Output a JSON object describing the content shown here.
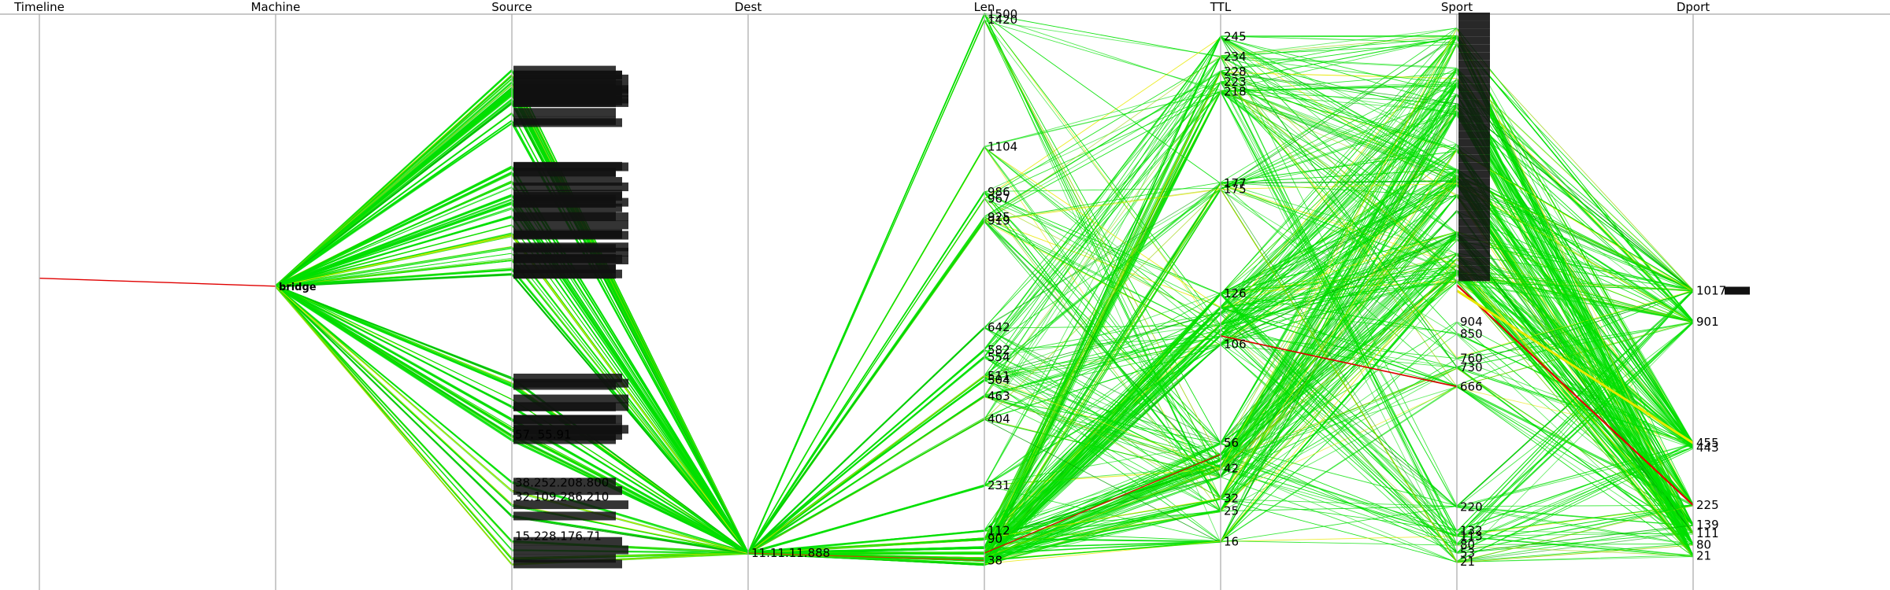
{
  "chart_data": {
    "type": "parallel-coordinates",
    "axes": [
      {
        "key": "timeline",
        "label": "Timeline"
      },
      {
        "key": "machine",
        "label": "Machine"
      },
      {
        "key": "source",
        "label": "Source"
      },
      {
        "key": "dest",
        "label": "Dest"
      },
      {
        "key": "len",
        "label": "Len"
      },
      {
        "key": "ttl",
        "label": "TTL"
      },
      {
        "key": "sport",
        "label": "Sport"
      },
      {
        "key": "dport",
        "label": "Dport"
      }
    ],
    "machine_labels": [
      "bridge"
    ],
    "dest_labels": [
      "11.11.11.888"
    ],
    "source_labels": [
      "57.    55.91",
      "38.252.208.800",
      "32.109.286.210",
      "15.228.176.71"
    ],
    "len_ticks": [
      {
        "label": "1500",
        "v": 0.0
      },
      {
        "label": "1420",
        "v": 0.01
      },
      {
        "label": "1104",
        "v": 0.235
      },
      {
        "label": "986",
        "v": 0.315
      },
      {
        "label": "967",
        "v": 0.327
      },
      {
        "label": "925",
        "v": 0.36
      },
      {
        "label": "919",
        "v": 0.366
      },
      {
        "label": "642",
        "v": 0.555
      },
      {
        "label": "582",
        "v": 0.595
      },
      {
        "label": "554",
        "v": 0.608
      },
      {
        "label": "511",
        "v": 0.641
      },
      {
        "label": "504",
        "v": 0.648
      },
      {
        "label": "463",
        "v": 0.677
      },
      {
        "label": "404",
        "v": 0.717
      },
      {
        "label": "231",
        "v": 0.835
      },
      {
        "label": "112",
        "v": 0.915
      },
      {
        "label": "90",
        "v": 0.93
      },
      {
        "label": "38",
        "v": 0.968
      }
    ],
    "ttl_ticks": [
      {
        "label": "245",
        "v": 0.04
      },
      {
        "label": "234",
        "v": 0.075
      },
      {
        "label": "228",
        "v": 0.102
      },
      {
        "label": "223",
        "v": 0.12
      },
      {
        "label": "218",
        "v": 0.137
      },
      {
        "label": "177",
        "v": 0.3
      },
      {
        "label": "175",
        "v": 0.31
      },
      {
        "label": "126",
        "v": 0.495
      },
      {
        "label": "106",
        "v": 0.585
      },
      {
        "label": "56",
        "v": 0.76
      },
      {
        "label": "42",
        "v": 0.805
      },
      {
        "label": "32",
        "v": 0.858
      },
      {
        "label": "25",
        "v": 0.88
      },
      {
        "label": "16",
        "v": 0.935
      }
    ],
    "sport_ticks": [
      {
        "label": "904",
        "v": 0.545
      },
      {
        "label": "850",
        "v": 0.567
      },
      {
        "label": "760",
        "v": 0.61
      },
      {
        "label": "730",
        "v": 0.626
      },
      {
        "label": "666",
        "v": 0.66
      },
      {
        "label": "220",
        "v": 0.873
      },
      {
        "label": "132",
        "v": 0.915
      },
      {
        "label": "113",
        "v": 0.925
      },
      {
        "label": "80",
        "v": 0.94
      },
      {
        "label": "53",
        "v": 0.955
      },
      {
        "label": "21",
        "v": 0.97
      }
    ],
    "dport_ticks": [
      {
        "label": "1017",
        "v": 0.49
      },
      {
        "label": "901",
        "v": 0.545
      },
      {
        "label": "455",
        "v": 0.76
      },
      {
        "label": "443",
        "v": 0.768
      },
      {
        "label": "225",
        "v": 0.87
      },
      {
        "label": "139",
        "v": 0.905
      },
      {
        "label": "111",
        "v": 0.92
      },
      {
        "label": "80",
        "v": 0.94
      },
      {
        "label": "21",
        "v": 0.96
      }
    ],
    "colors": {
      "normal": "#00e000",
      "warm": "#e8e800",
      "hot": "#e00000",
      "axis": "#a8a8a8"
    },
    "grid": false,
    "legend": "none"
  }
}
